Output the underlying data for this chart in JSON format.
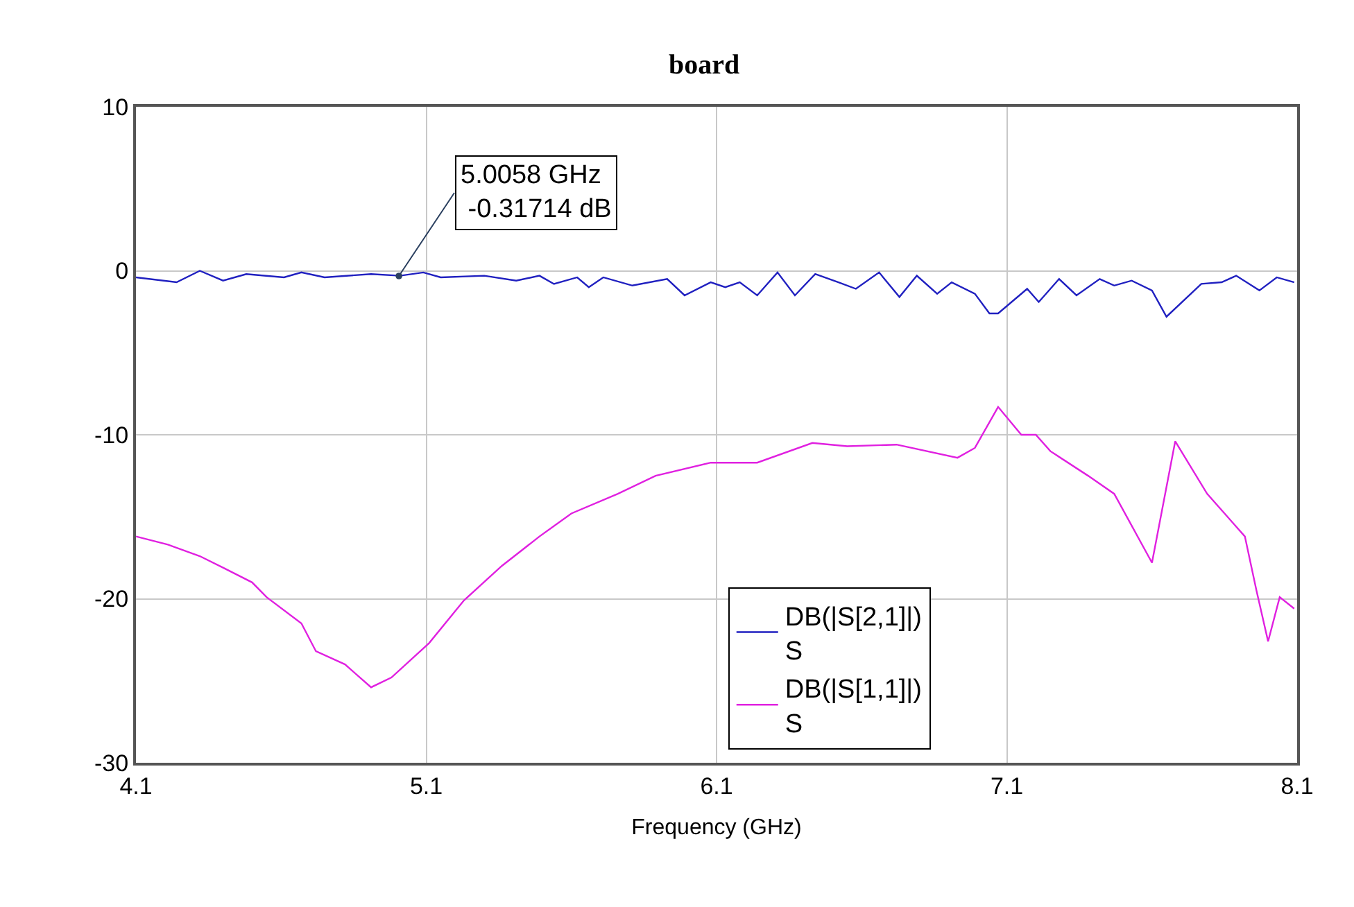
{
  "chart_data": {
    "type": "line",
    "title": "board",
    "xlabel": "Frequency (GHz)",
    "xlim": [
      4.1,
      8.1
    ],
    "xticks": [
      4.1,
      5.1,
      6.1,
      7.1,
      8.1
    ],
    "ylim": [
      -30,
      10
    ],
    "yticks": [
      -30,
      -20,
      -10,
      0,
      10
    ],
    "grid": true,
    "legend": "bottom right",
    "annotations": [
      {
        "text": "5.0058 GHz\n -0.31714 dB",
        "x": 5.0058,
        "y": -0.31714
      }
    ],
    "series": [
      {
        "name": "DB(|S[2,1]|)\nS",
        "color": "#2020c0",
        "x": [
          4.1,
          4.24,
          4.32,
          4.4,
          4.48,
          4.61,
          4.67,
          4.75,
          4.91,
          5.01,
          5.09,
          5.15,
          5.3,
          5.41,
          5.49,
          5.54,
          5.62,
          5.66,
          5.71,
          5.81,
          5.93,
          5.99,
          6.08,
          6.13,
          6.18,
          6.24,
          6.31,
          6.37,
          6.44,
          6.52,
          6.58,
          6.66,
          6.73,
          6.79,
          6.86,
          6.91,
          6.99,
          7.04,
          7.07,
          7.17,
          7.21,
          7.28,
          7.34,
          7.42,
          7.47,
          7.53,
          7.6,
          7.65,
          7.77,
          7.84,
          7.89,
          7.97,
          8.03,
          8.09
        ],
        "values": [
          -0.4,
          -0.7,
          0.0,
          -0.6,
          -0.2,
          -0.4,
          -0.1,
          -0.4,
          -0.2,
          -0.3,
          -0.1,
          -0.4,
          -0.3,
          -0.6,
          -0.3,
          -0.8,
          -0.4,
          -1.0,
          -0.4,
          -0.9,
          -0.5,
          -1.5,
          -0.7,
          -1.0,
          -0.7,
          -1.5,
          -0.1,
          -1.5,
          -0.2,
          -0.7,
          -1.1,
          -0.1,
          -1.6,
          -0.3,
          -1.4,
          -0.7,
          -1.4,
          -2.6,
          -2.6,
          -1.1,
          -1.9,
          -0.5,
          -1.5,
          -0.5,
          -0.9,
          -0.6,
          -1.2,
          -2.8,
          -0.8,
          -0.7,
          -0.3,
          -1.2,
          -0.4,
          -0.7
        ]
      },
      {
        "name": "DB(|S[1,1]|)\nS",
        "color": "#e020e0",
        "x": [
          4.1,
          4.21,
          4.32,
          4.4,
          4.5,
          4.55,
          4.67,
          4.72,
          4.82,
          4.91,
          4.98,
          5.11,
          5.23,
          5.36,
          5.49,
          5.6,
          5.76,
          5.89,
          6.08,
          6.24,
          6.43,
          6.55,
          6.72,
          6.93,
          6.99,
          7.07,
          7.15,
          7.2,
          7.25,
          7.38,
          7.47,
          7.6,
          7.68,
          7.79,
          7.92,
          7.96,
          8.0,
          8.04,
          8.09
        ],
        "values": [
          -16.2,
          -16.7,
          -17.4,
          -18.1,
          -19.0,
          -19.9,
          -21.5,
          -23.2,
          -24.0,
          -25.4,
          -24.8,
          -22.7,
          -20.1,
          -18.0,
          -16.2,
          -14.8,
          -13.6,
          -12.5,
          -11.7,
          -11.7,
          -10.5,
          -10.7,
          -10.6,
          -11.4,
          -10.8,
          -8.3,
          -10.0,
          -10.0,
          -11.0,
          -12.5,
          -13.6,
          -17.8,
          -10.4,
          -13.6,
          -16.2,
          -19.5,
          -22.6,
          -19.9,
          -20.6
        ]
      }
    ]
  }
}
